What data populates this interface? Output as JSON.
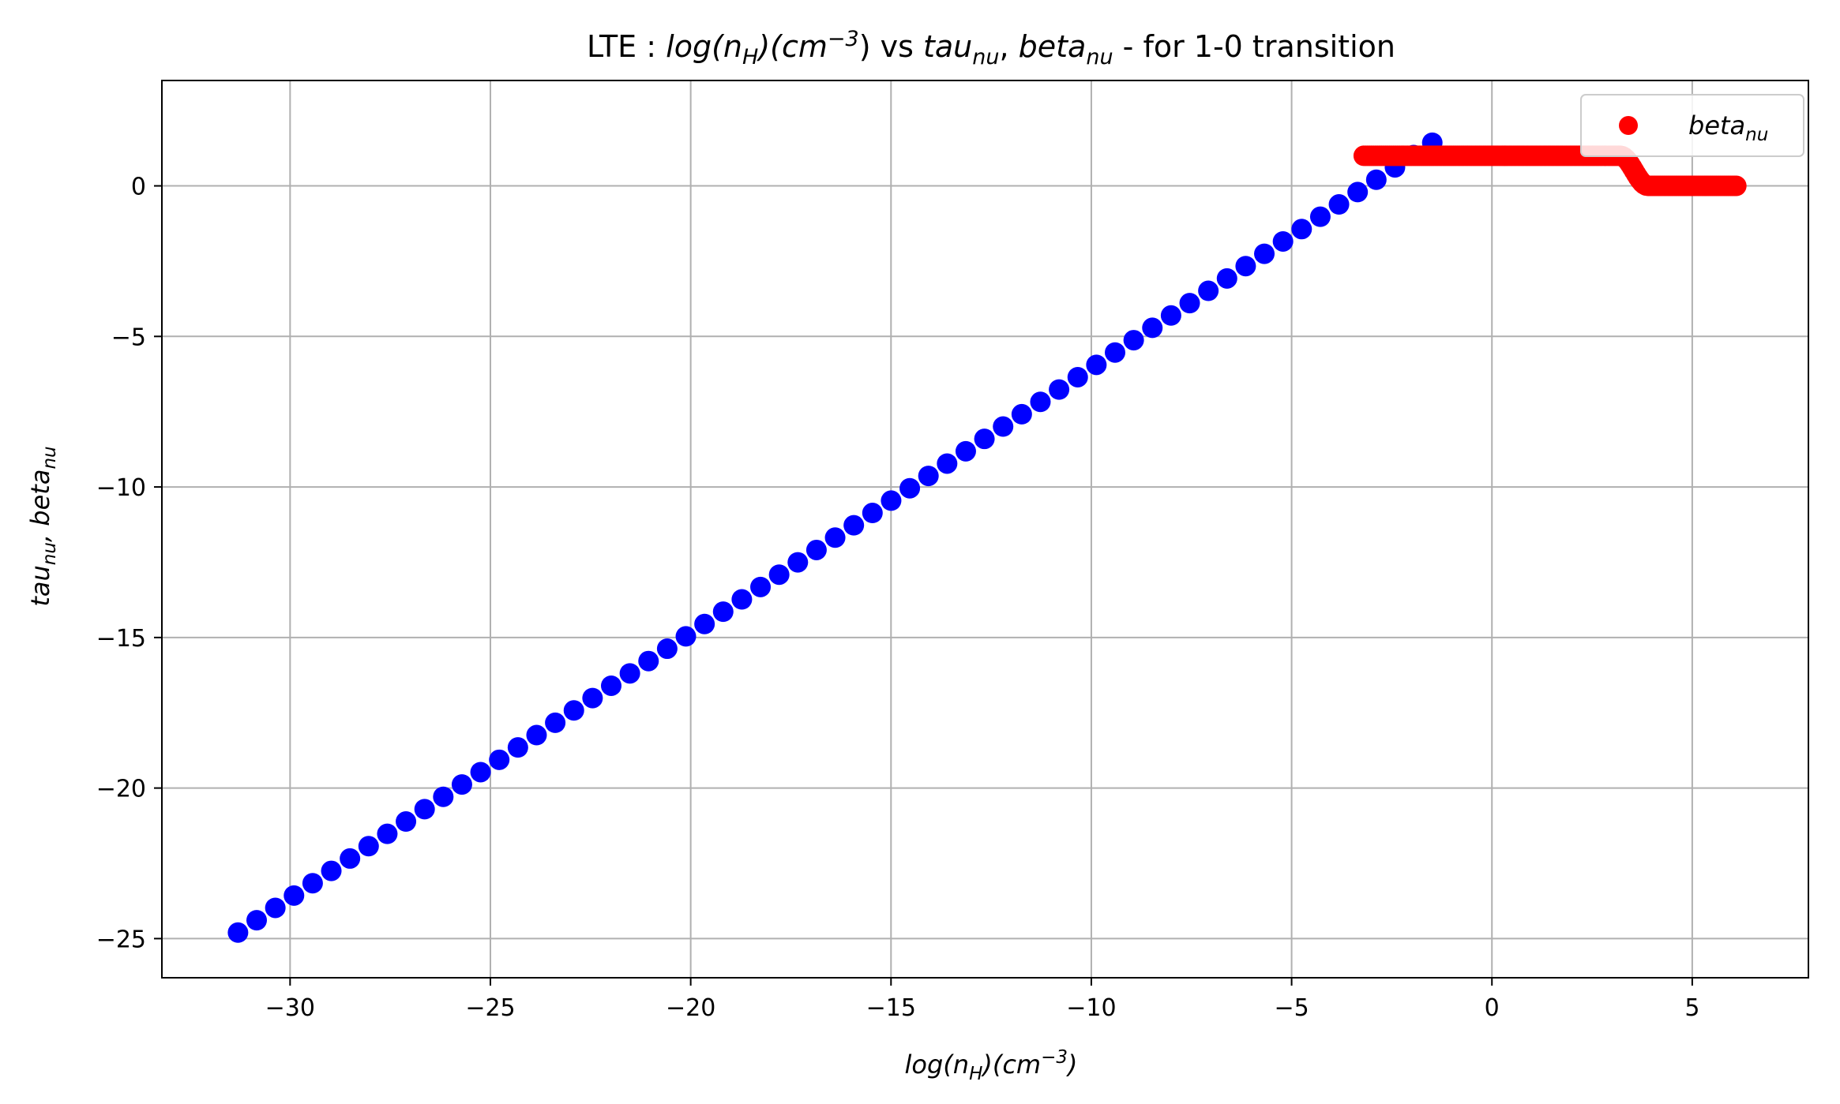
{
  "chart_data": {
    "type": "scatter",
    "title": {
      "prefix": "LTE : ",
      "nh_base": "log(n",
      "nh_sub": "H",
      "nh_mid": ")(cm",
      "nh_sup": "−3",
      "nh_end": ")",
      "vs": " vs ",
      "tau_base": "tau",
      "tau_sub": "nu",
      "sep": ", ",
      "beta_base": "beta",
      "beta_sub": "nu",
      "suffix": " - for 1-0 transition"
    },
    "xlabel": {
      "base": "log(n",
      "sub": "H",
      "mid": ")(cm",
      "sup": "−3",
      "end": ")"
    },
    "ylabel": {
      "tau_base": "tau",
      "tau_sub": "nu",
      "sep": ",   ",
      "beta_base": "beta",
      "beta_sub": "nu"
    },
    "xlim": [
      -33.2,
      7.9
    ],
    "ylim": [
      -26.3,
      3.5
    ],
    "xticks": [
      -30,
      -25,
      -20,
      -15,
      -10,
      -5,
      0,
      5
    ],
    "xtick_labels": [
      "−30",
      "−25",
      "−20",
      "−15",
      "−10",
      "−5",
      "0",
      "5"
    ],
    "yticks": [
      0,
      -5,
      -10,
      -15,
      -20,
      -25
    ],
    "ytick_labels": [
      "0",
      "−5",
      "−10",
      "−15",
      "−20",
      "−25"
    ],
    "grid": true,
    "legend": {
      "placement": "top-right",
      "entries": [
        {
          "base": "beta",
          "sub": "nu",
          "color": "#ff0000"
        }
      ]
    },
    "series": [
      {
        "color": "#0000ff",
        "x_start": -31.3,
        "x_end": -1.1,
        "x_step": 0.4658,
        "y_start": -24.8,
        "slope": 0.88,
        "note_linear": true
      },
      {
        "name": "beta_nu",
        "color": "#ff0000",
        "x_start": -3.2,
        "x_end": 6.1,
        "x_step": 0.05,
        "plateau_high": 1.0,
        "plateau_low": 0.0,
        "drop_start": 3.2,
        "drop_end": 3.9
      }
    ]
  }
}
